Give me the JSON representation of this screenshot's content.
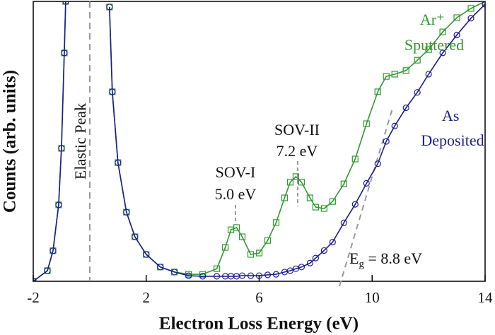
{
  "chart_data": {
    "type": "line",
    "xlabel": "Electron Loss Energy (eV)",
    "ylabel": "Counts (arb. units)",
    "x": [
      -2,
      -1.5,
      -1.3,
      -1.1,
      -1.0,
      -0.9,
      -0.85,
      0,
      0.7,
      0.8,
      1.0,
      1.3,
      1.6,
      2,
      2.5,
      3,
      3.5,
      4,
      4.5,
      4.8,
      5.0,
      5.2,
      5.4,
      5.7,
      6.0,
      6.3,
      6.6,
      6.9,
      7.1,
      7.3,
      7.5,
      7.8,
      8.0,
      8.3,
      8.6,
      9.0,
      9.4,
      9.8,
      10.2,
      10.5,
      10.8,
      11.2,
      11.6,
      12,
      12.5,
      13,
      13.5,
      14
    ],
    "series": [
      {
        "name": "Ar⁺ Sputtered",
        "color": "#2e9a2e",
        "marker": "square",
        "values": [
          0,
          3.8,
          10.9,
          27.3,
          47.5,
          81.6,
          100,
          null,
          98,
          67.7,
          42.4,
          24.7,
          15.9,
          9.6,
          5.1,
          3.3,
          2.5,
          2.5,
          4.5,
          12.1,
          18.4,
          19.2,
          15.9,
          9.6,
          10.1,
          14.6,
          21,
          29.8,
          35.4,
          37.4,
          35.4,
          29.8,
          26.5,
          26,
          28.5,
          34.8,
          43.7,
          56.3,
          67.7,
          73.2,
          74,
          75.3,
          79,
          82.8,
          89.1,
          94.2,
          97.5,
          100
        ]
      },
      {
        "name": "As Deposited",
        "color": "#1c1c8e",
        "marker": "circle",
        "values": [
          0,
          3.8,
          10.9,
          27.3,
          47.5,
          81.6,
          100,
          null,
          98,
          67.7,
          42.4,
          24.7,
          15.9,
          9.6,
          5.1,
          3.3,
          2.0,
          1.8,
          1.8,
          1.8,
          1.8,
          1.8,
          2,
          2,
          2,
          2.3,
          2.5,
          3.3,
          3.8,
          4.5,
          5.1,
          6.5,
          8.3,
          11,
          14,
          20.9,
          27.5,
          35,
          42,
          50,
          55.5,
          62,
          67.5,
          74,
          81.6,
          88,
          94,
          99
        ]
      }
    ],
    "annotations": [
      "Elastic Peak",
      "SOV-I",
      "5.0 eV",
      "SOV-II",
      "7.2 eV"
    ],
    "gap_annotation": {
      "text": "E",
      "subscript": "g",
      "suffix": " = 8.8 eV"
    },
    "xlim": [
      -2,
      14
    ],
    "xticks": [
      -2,
      2,
      6,
      10,
      14
    ],
    "ylim": [
      0,
      100
    ]
  }
}
